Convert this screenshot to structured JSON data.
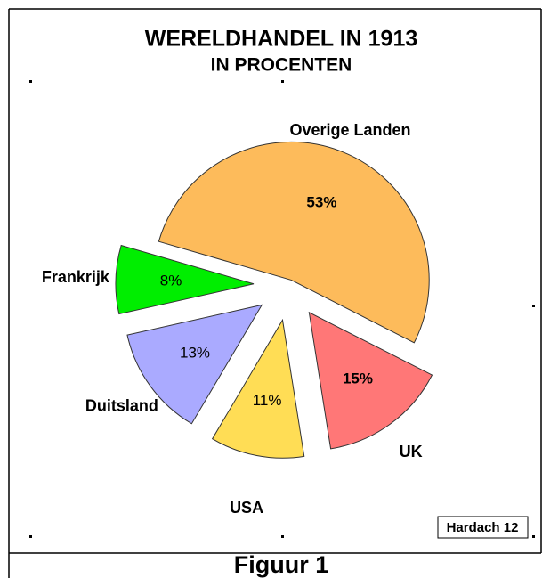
{
  "chart_data": {
    "type": "pie",
    "title": "WERELDHANDEL IN 1913",
    "subtitle": "IN PROCENTEN",
    "categories": [
      "Overige Landen",
      "Frankrijk",
      "Duitsland",
      "USA",
      "UK"
    ],
    "values": [
      53,
      8,
      13,
      11,
      15
    ],
    "value_labels": [
      "53%",
      "8%",
      "13%",
      "11%",
      "15%"
    ],
    "colors": [
      "#fdbb5b",
      "#00ee00",
      "#aaaaff",
      "#ffdd55",
      "#ff7777"
    ],
    "source": "Hardach 12",
    "caption": "Figuur 1"
  }
}
